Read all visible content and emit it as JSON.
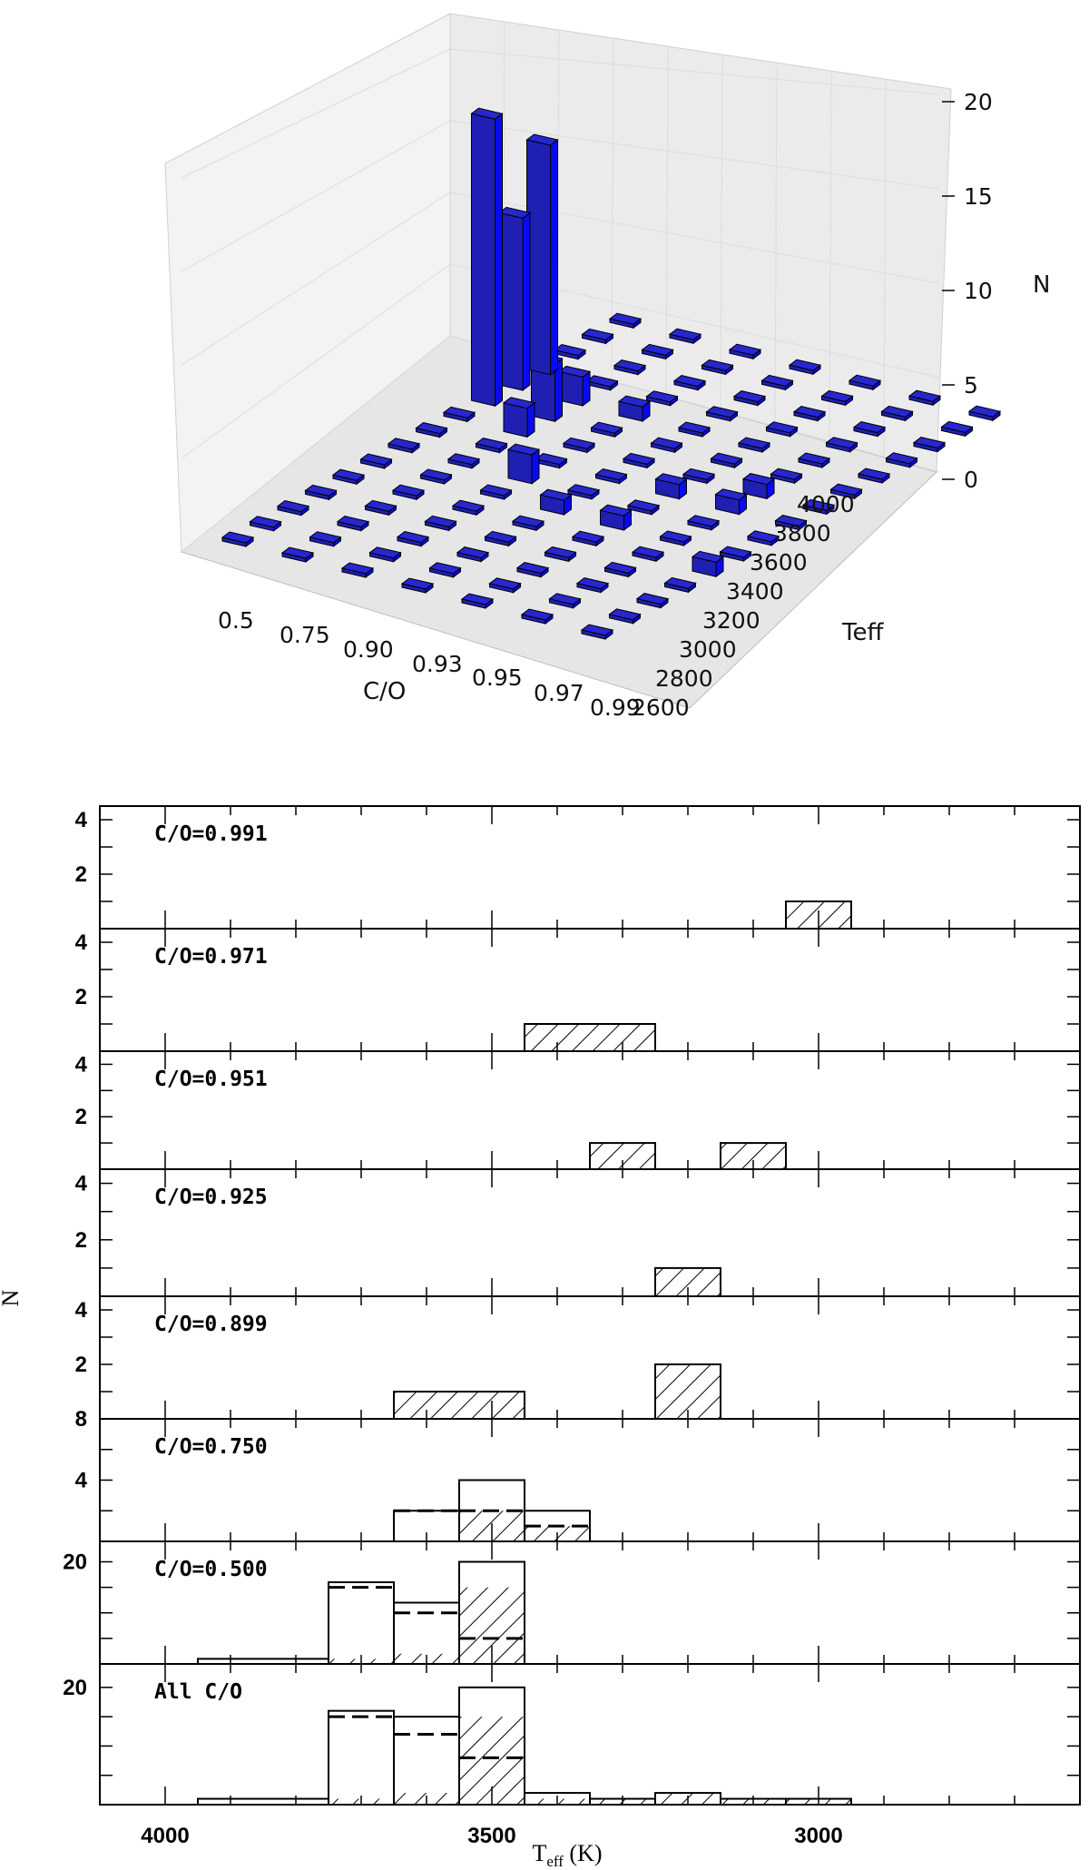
{
  "chart_data": [
    {
      "type": "bar3d",
      "xlabel": "C/O",
      "ylabel": "Teff",
      "zlabel": "N",
      "x_ticks": [
        "0.5",
        "0.75",
        "0.90",
        "0.93",
        "0.95",
        "0.97",
        "0.99"
      ],
      "y_ticks": [
        "2600",
        "2800",
        "3000",
        "3200",
        "3400",
        "3600",
        "3800",
        "4000"
      ],
      "z_ticks": [
        "0",
        "5",
        "10",
        "15",
        "20"
      ],
      "zlim": [
        0,
        20
      ],
      "bar_color": "#1f1fb4",
      "nonzero_bars": [
        {
          "co": "0.5",
          "teff": 3500,
          "n": 20
        },
        {
          "co": "0.5",
          "teff": 3700,
          "n": 16
        },
        {
          "co": "0.5",
          "teff": 3600,
          "n": 12
        },
        {
          "co": "0.75",
          "teff": 3500,
          "n": 4
        },
        {
          "co": "0.75",
          "teff": 3600,
          "n": 2
        },
        {
          "co": "0.75",
          "teff": 3400,
          "n": 2
        },
        {
          "co": "0.90",
          "teff": 3600,
          "n": 1
        },
        {
          "co": "0.90",
          "teff": 3200,
          "n": 2
        },
        {
          "co": "0.93",
          "teff": 3100,
          "n": 1
        },
        {
          "co": "0.95",
          "teff": 3300,
          "n": 1
        },
        {
          "co": "0.95",
          "teff": 3100,
          "n": 1
        },
        {
          "co": "0.97",
          "teff": 3400,
          "n": 1
        },
        {
          "co": "0.97",
          "teff": 3300,
          "n": 1
        },
        {
          "co": "0.99",
          "teff": 3000,
          "n": 1
        }
      ]
    },
    {
      "type": "histogram",
      "xlabel": "Teff (K)",
      "ylabel": "N",
      "xlim": [
        4100,
        2600
      ],
      "x_ticks": [
        "4000",
        "3500",
        "3000"
      ],
      "panels": [
        {
          "label": "C/O=0.991",
          "ymax": 4.5,
          "yticks": [
            "2",
            "4"
          ],
          "hatched": [
            {
              "x0": 3050,
              "x1": 2950,
              "n": 1
            }
          ],
          "solid": [],
          "dashed": []
        },
        {
          "label": "C/O=0.971",
          "ymax": 4.5,
          "yticks": [
            "2",
            "4"
          ],
          "hatched": [
            {
              "x0": 3450,
              "x1": 3250,
              "n": 1
            }
          ],
          "solid": [],
          "dashed": []
        },
        {
          "label": "C/O=0.951",
          "ymax": 4.5,
          "yticks": [
            "2",
            "4"
          ],
          "hatched": [
            {
              "x0": 3350,
              "x1": 3250,
              "n": 1
            },
            {
              "x0": 3150,
              "x1": 3050,
              "n": 1
            }
          ],
          "solid": [],
          "dashed": []
        },
        {
          "label": "C/O=0.925",
          "ymax": 4.5,
          "yticks": [
            "2",
            "4"
          ],
          "hatched": [
            {
              "x0": 3250,
              "x1": 3150,
              "n": 1
            }
          ],
          "solid": [],
          "dashed": []
        },
        {
          "label": "C/O=0.899",
          "ymax": 4.5,
          "yticks": [
            "2",
            "4"
          ],
          "hatched": [
            {
              "x0": 3650,
              "x1": 3450,
              "n": 1
            },
            {
              "x0": 3250,
              "x1": 3150,
              "n": 2
            }
          ],
          "solid": [],
          "dashed": []
        },
        {
          "label": "C/O=0.750",
          "ymax": 8,
          "yticks": [
            "4",
            "8"
          ],
          "solid": [
            {
              "x0": 3650,
              "x1": 3550,
              "n": 2
            },
            {
              "x0": 3550,
              "x1": 3450,
              "n": 4
            },
            {
              "x0": 3450,
              "x1": 3350,
              "n": 2
            }
          ],
          "dashed": [
            {
              "x0": 3650,
              "x1": 3550,
              "n": 2
            },
            {
              "x0": 3550,
              "x1": 3450,
              "n": 2
            },
            {
              "x0": 3450,
              "x1": 3350,
              "n": 1
            }
          ],
          "hatched": [
            {
              "x0": 3550,
              "x1": 3450,
              "n": 2
            },
            {
              "x0": 3450,
              "x1": 3350,
              "n": 1
            }
          ]
        },
        {
          "label": "C/O=0.500",
          "ymax": 24,
          "yticks": [
            "20"
          ],
          "solid": [
            {
              "x0": 3950,
              "x1": 3750,
              "n": 1
            },
            {
              "x0": 3750,
              "x1": 3650,
              "n": 16
            },
            {
              "x0": 3650,
              "x1": 3550,
              "n": 12
            },
            {
              "x0": 3550,
              "x1": 3450,
              "n": 20
            }
          ],
          "dashed": [
            {
              "x0": 3750,
              "x1": 3650,
              "n": 15
            },
            {
              "x0": 3650,
              "x1": 3550,
              "n": 10
            },
            {
              "x0": 3550,
              "x1": 3450,
              "n": 5
            }
          ],
          "hatched": [
            {
              "x0": 3750,
              "x1": 3650,
              "n": 1
            },
            {
              "x0": 3650,
              "x1": 3550,
              "n": 2
            },
            {
              "x0": 3550,
              "x1": 3450,
              "n": 15
            }
          ]
        },
        {
          "label": "All C/O",
          "ymax": 24,
          "yticks": [
            "20"
          ],
          "solid": [
            {
              "x0": 3950,
              "x1": 3750,
              "n": 1
            },
            {
              "x0": 3750,
              "x1": 3650,
              "n": 16
            },
            {
              "x0": 3650,
              "x1": 3550,
              "n": 15
            },
            {
              "x0": 3550,
              "x1": 3450,
              "n": 20
            },
            {
              "x0": 3450,
              "x1": 3350,
              "n": 2
            },
            {
              "x0": 3350,
              "x1": 3250,
              "n": 1
            },
            {
              "x0": 3250,
              "x1": 3150,
              "n": 2
            },
            {
              "x0": 3150,
              "x1": 3050,
              "n": 1
            },
            {
              "x0": 3050,
              "x1": 2950,
              "n": 1
            }
          ],
          "dashed": [
            {
              "x0": 3750,
              "x1": 3650,
              "n": 15
            },
            {
              "x0": 3650,
              "x1": 3550,
              "n": 12
            },
            {
              "x0": 3550,
              "x1": 3450,
              "n": 8
            }
          ],
          "hatched": [
            {
              "x0": 3750,
              "x1": 3650,
              "n": 1
            },
            {
              "x0": 3650,
              "x1": 3550,
              "n": 2
            },
            {
              "x0": 3550,
              "x1": 3450,
              "n": 15
            },
            {
              "x0": 3450,
              "x1": 3350,
              "n": 1
            },
            {
              "x0": 3350,
              "x1": 3250,
              "n": 1
            },
            {
              "x0": 3250,
              "x1": 3150,
              "n": 2
            },
            {
              "x0": 3150,
              "x1": 3050,
              "n": 1
            },
            {
              "x0": 3050,
              "x1": 2950,
              "n": 1
            }
          ]
        }
      ]
    }
  ]
}
